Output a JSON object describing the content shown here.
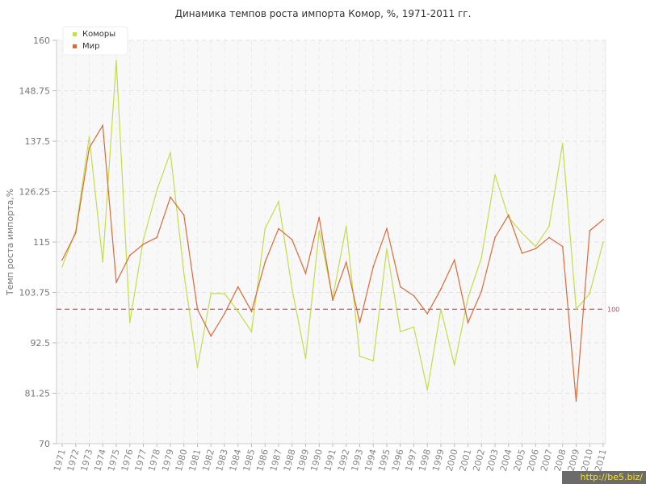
{
  "chart_data": {
    "type": "line",
    "title": "Динамика темпов роста импорта Комор, %, 1971-2011 гг.",
    "xlabel": "",
    "ylabel": "Темп роста импорта,%",
    "ylim": [
      70,
      160
    ],
    "yticks": [
      "70",
      "81.25",
      "92.5",
      "103.75",
      "115",
      "126.25",
      "137.5",
      "148.75",
      "160"
    ],
    "x": [
      "1971",
      "1972",
      "1973",
      "1974",
      "1975",
      "1976",
      "1977",
      "1978",
      "1979",
      "1980",
      "1981",
      "1982",
      "1983",
      "1984",
      "1985",
      "1986",
      "1987",
      "1988",
      "1989",
      "1990",
      "1991",
      "1992",
      "1993",
      "1994",
      "1995",
      "1996",
      "1997",
      "1998",
      "1999",
      "2000",
      "2001",
      "2002",
      "2003",
      "2004",
      "2005",
      "2006",
      "2007",
      "2008",
      "2009",
      "2010",
      "2011"
    ],
    "series": [
      {
        "name": "Коморы",
        "color": "#c4dd4a",
        "values": [
          109.5,
          117.5,
          138.5,
          110.5,
          155.5,
          97,
          115.5,
          126.5,
          135,
          108,
          87,
          103.5,
          103.5,
          99.5,
          95,
          118,
          124,
          104.5,
          89,
          117.5,
          102.5,
          118.5,
          89.5,
          88.5,
          113.5,
          95,
          96,
          82,
          100,
          87.5,
          102.5,
          111.5,
          130,
          120.5,
          117,
          114,
          118.5,
          137,
          100,
          103.5,
          115
        ]
      },
      {
        "name": "Мир",
        "color": "#dc6a38",
        "values": [
          111,
          117,
          136,
          141,
          106,
          112,
          114.5,
          116,
          125,
          121,
          100,
          94,
          99,
          105,
          99.5,
          110.5,
          118,
          115.5,
          108,
          120.5,
          102,
          110.5,
          97,
          109.5,
          118,
          105,
          103,
          99,
          104.5,
          111,
          97,
          104,
          116,
          121,
          112.5,
          113.5,
          116,
          114,
          79.5,
          117.5,
          120
        ]
      }
    ],
    "reference_line": {
      "value": 100,
      "label": "100",
      "color": "#a0525f"
    },
    "grid": true,
    "legend_position": "top-left"
  },
  "watermark": "http://be5.biz/"
}
